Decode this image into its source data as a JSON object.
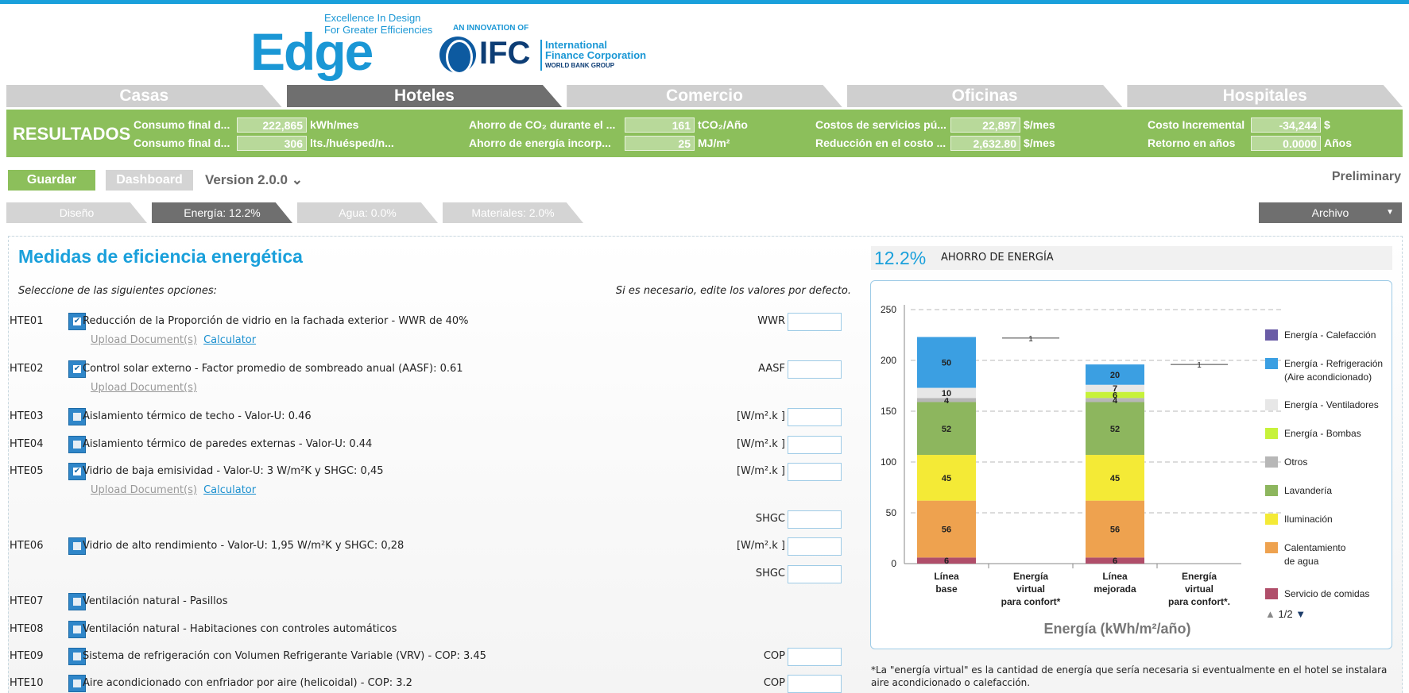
{
  "header": {
    "logo_text": "Edge",
    "tagline_1": "Excellence In Design",
    "tagline_2": "For Greater Efficiencies",
    "ifc_innovation": "AN INNOVATION OF",
    "ifc_word": "IFC",
    "ifc_name_1": "International",
    "ifc_name_2": "Finance Corporation",
    "ifc_name_3": "WORLD BANK GROUP"
  },
  "main_tabs": [
    "Casas",
    "Hoteles",
    "Comercio",
    "Oficinas",
    "Hospitales"
  ],
  "results": {
    "title": "RESULTADOS",
    "cells": [
      {
        "label": "Consumo final d...",
        "value": "222,865",
        "unit": "kWh/mes"
      },
      {
        "label": "Consumo final d...",
        "value": "306",
        "unit": "lts./huésped/n..."
      },
      {
        "label": "Ahorro de CO₂ durante el ...",
        "value": "161",
        "unit": "tCO₂/Año"
      },
      {
        "label": "Ahorro de energía incorp...",
        "value": "25",
        "unit": "MJ/m²"
      },
      {
        "label": "Costos de servicios pú...",
        "value": "22,897",
        "unit": "$/mes"
      },
      {
        "label": "Reducción en el costo ...",
        "value": "2,632.80",
        "unit": "$/mes"
      },
      {
        "label": "Costo Incremental",
        "value": "-34,244",
        "unit": "$"
      },
      {
        "label": "Retorno en años",
        "value": "0.0000",
        "unit": "Años"
      }
    ]
  },
  "toolbar": {
    "save_label": "Guardar",
    "dashboard_label": "Dashboard",
    "version": "Version 2.0.0",
    "version_caret": "⌄",
    "status": "Preliminary"
  },
  "sub_tabs": [
    "Diseño",
    "Energía: 12.2%",
    "Agua: 0.0%",
    "Materiales: 2.0%"
  ],
  "archivo": {
    "label": "Archivo",
    "caret": "▼"
  },
  "panel": {
    "title": "Medidas de eficiencia energética",
    "select_note": "Seleccione de las siguientes opciones:",
    "edit_note": "Si es necesario, edite los valores por defecto."
  },
  "links": {
    "upload": "Upload Document(s)",
    "calculator": "Calculator"
  },
  "measures": [
    {
      "code": "HTE01",
      "desc": "Reducción de la Proporción de vidrio en la fachada exterior - WWR de 40%",
      "field": "WWR"
    },
    {
      "code": "HTE02",
      "desc": "Control solar externo - Factor promedio de sombreado anual (AASF): 0.61",
      "field": "AASF"
    },
    {
      "code": "HTE03",
      "desc": "Aislamiento térmico de techo - Valor-U: 0.46",
      "field": "[W/m².k ]"
    },
    {
      "code": "HTE04",
      "desc": "Aislamiento térmico de paredes externas - Valor-U: 0.44",
      "field": "[W/m².k ]"
    },
    {
      "code": "HTE05",
      "desc": "Vidrio de baja emisividad - Valor-U: 3 W/m²K y SHGC: 0,45",
      "field": "[W/m².k ]",
      "field2": "SHGC"
    },
    {
      "code": "HTE06",
      "desc": "Vidrio de alto rendimiento - Valor-U: 1,95 W/m²K y SHGC: 0,28",
      "field": "[W/m².k ]",
      "field2": "SHGC"
    },
    {
      "code": "HTE07",
      "desc": "Ventilación natural - Pasillos"
    },
    {
      "code": "HTE08",
      "desc": "Ventilación natural - Habitaciones con controles automáticos"
    },
    {
      "code": "HTE09",
      "desc": "Sistema de refrigeración con Volumen Refrigerante Variable (VRV) - COP: 3.45",
      "field": "COP"
    },
    {
      "code": "HTE10",
      "desc": "Aire acondicionado con enfriador por aire (helicoidal) - COP: 3.2",
      "field": "COP"
    }
  ],
  "energy": {
    "saving_pct": "12.2%",
    "saving_label": "AHORRO DE ENERGÍA",
    "footnote": "*La \"energía virtual\" es la cantidad de energía que sería necesaria si eventualmente en el hotel se instalara aire acondicionado o calefacción.",
    "pager": {
      "up": "▲",
      "page": "1/2",
      "down": "▼"
    }
  },
  "chart_data": {
    "type": "bar",
    "stacked": true,
    "xlabel": "Energía (kWh/m²/año)",
    "ylim": [
      0,
      250
    ],
    "yticks": [
      0,
      50,
      100,
      150,
      200,
      250
    ],
    "grid": true,
    "legend_position": "right",
    "categories": [
      "Línea base",
      "Energía virtual para confort*",
      "Línea mejorada",
      "Energía virtual para confort*."
    ],
    "series": [
      {
        "name": "Servicio de comidas",
        "color": "#b04e6a",
        "values": [
          6,
          0,
          6,
          0
        ]
      },
      {
        "name": "Calentamiento de agua",
        "color": "#eea24f",
        "values": [
          56,
          0,
          56,
          0
        ]
      },
      {
        "name": "Iluminación",
        "color": "#f4ea36",
        "values": [
          45,
          0,
          45,
          0
        ]
      },
      {
        "name": "Lavandería",
        "color": "#8db65e",
        "values": [
          52,
          0,
          52,
          0
        ]
      },
      {
        "name": "Otros",
        "color": "#b7b7b7",
        "values": [
          4,
          0,
          4,
          0
        ]
      },
      {
        "name": "Energía - Bombas",
        "color": "#c7f23a",
        "values": [
          0,
          0,
          6,
          0
        ]
      },
      {
        "name": "Energía - Ventiladores",
        "color": "#e7e7e7",
        "values": [
          10,
          0,
          7,
          0
        ]
      },
      {
        "name": "Energía - Refrigeración (Aire acondicionado)",
        "color": "#3b9fe2",
        "values": [
          50,
          0,
          20,
          0
        ]
      },
      {
        "name": "Energía - Calefacción",
        "color": "#6a5ca6",
        "values": [
          0,
          0,
          0,
          0
        ]
      }
    ],
    "virtual_labels": [
      {
        "category_index": 1,
        "value": 222,
        "label": "1"
      },
      {
        "category_index": 3,
        "value": 196,
        "label": "1"
      }
    ],
    "category_label_lines": [
      [
        "Línea",
        "base"
      ],
      [
        "Energía",
        "virtual",
        "para confort*"
      ],
      [
        "Línea",
        "mejorada"
      ],
      [
        "Energía",
        "virtual",
        "para confort*."
      ]
    ],
    "legend_lines": [
      [
        "Energía - Calefacción"
      ],
      [
        "Energía - Refrigeración",
        "(Aire acondicionado)"
      ],
      [
        "Energía - Ventiladores"
      ],
      [
        "Energía - Bombas"
      ],
      [
        "Otros"
      ],
      [
        "Lavandería"
      ],
      [
        "Iluminación"
      ],
      [
        "Calentamiento",
        "de agua"
      ],
      [
        "Servicio de comidas"
      ]
    ]
  },
  "colors": {
    "accent": "#1aa0db",
    "green": "#8cbf5b",
    "tab_active": "#6f6f6f",
    "tab_inactive": "#cfcfcf"
  }
}
